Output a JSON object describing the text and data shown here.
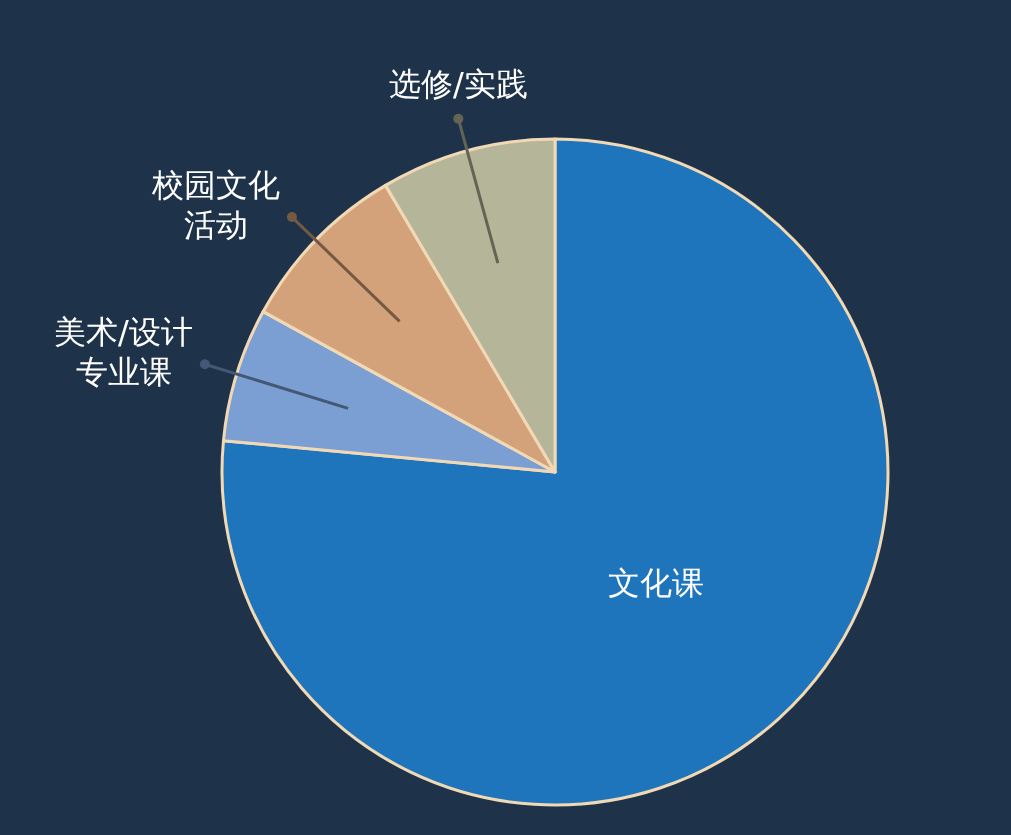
{
  "chart_data": {
    "type": "pie",
    "categories": [
      "文化课",
      "美术/设计专业课",
      "校园文化活动",
      "选修/实践"
    ],
    "values": [
      76.5,
      6.5,
      8.5,
      8.5
    ],
    "colors": [
      "#1f75bb",
      "#7b9fd3",
      "#d4a27a",
      "#b5b59a"
    ]
  }
}
